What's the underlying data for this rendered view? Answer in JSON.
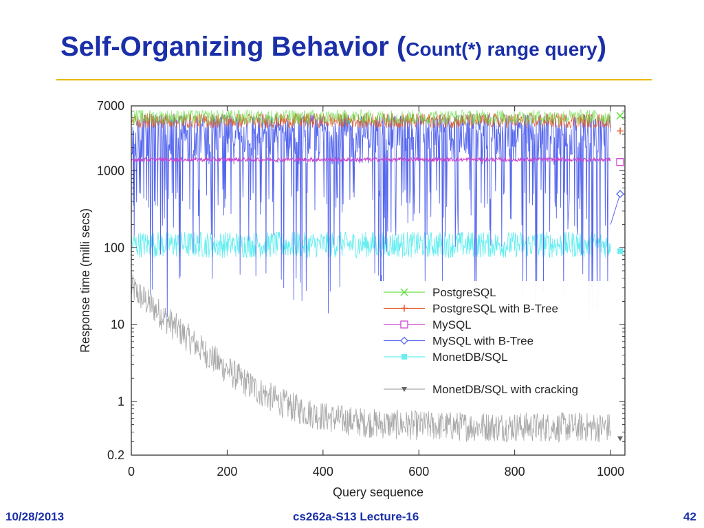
{
  "slide": {
    "title_main": "Self-Organizing Behavior (",
    "title_small": "Count(*) range query",
    "title_close": ")",
    "footer_left": "10/28/2013",
    "footer_center": "cs262a-S13 Lecture-16",
    "footer_right": "42",
    "colors": {
      "title": "#1a2fa8",
      "rule": "#e8b800"
    }
  },
  "chart_data": {
    "type": "line",
    "xlabel": "Query sequence",
    "ylabel": "Response time (milli secs)",
    "xlim": [
      0,
      1030
    ],
    "ylim": [
      0.2,
      7000
    ],
    "yscale": "log",
    "xticks": [
      0,
      200,
      400,
      600,
      800,
      1000
    ],
    "yticks": [
      0.2,
      1,
      10,
      100,
      1000,
      7000
    ],
    "legend_position": "bottom-right",
    "series": [
      {
        "name": "PostgreSQL",
        "color": "#66dd44",
        "marker": "x",
        "typical": 5000,
        "low": 3500,
        "high": 6500,
        "end_marker": [
          1020,
          5200
        ]
      },
      {
        "name": "PostgreSQL with B-Tree",
        "color": "#e05a2a",
        "marker": "+",
        "typical": 4500,
        "low": 3000,
        "high": 6200,
        "end_marker": [
          1020,
          3300
        ]
      },
      {
        "name": "MySQL",
        "color": "#cc44cc",
        "marker": "square",
        "typical": 1400,
        "low": 1200,
        "high": 1600,
        "end_marker": [
          1020,
          1300
        ]
      },
      {
        "name": "MySQL with B-Tree",
        "color": "#5566ee",
        "marker": "diamond",
        "typical": 3500,
        "low": 10,
        "high": 5500,
        "end_marker": [
          1020,
          500
        ]
      },
      {
        "name": "MonetDB/SQL",
        "color": "#66eef0",
        "marker": "filled-square",
        "typical": 110,
        "low": 70,
        "high": 160,
        "end_marker": [
          1020,
          90
        ]
      },
      {
        "name": "MonetDB/SQL with cracking",
        "color": "#aaaaaa",
        "marker": "filled-triangle-down",
        "start": 30,
        "end": 0.45,
        "end_marker": [
          1020,
          0.33
        ]
      }
    ]
  }
}
